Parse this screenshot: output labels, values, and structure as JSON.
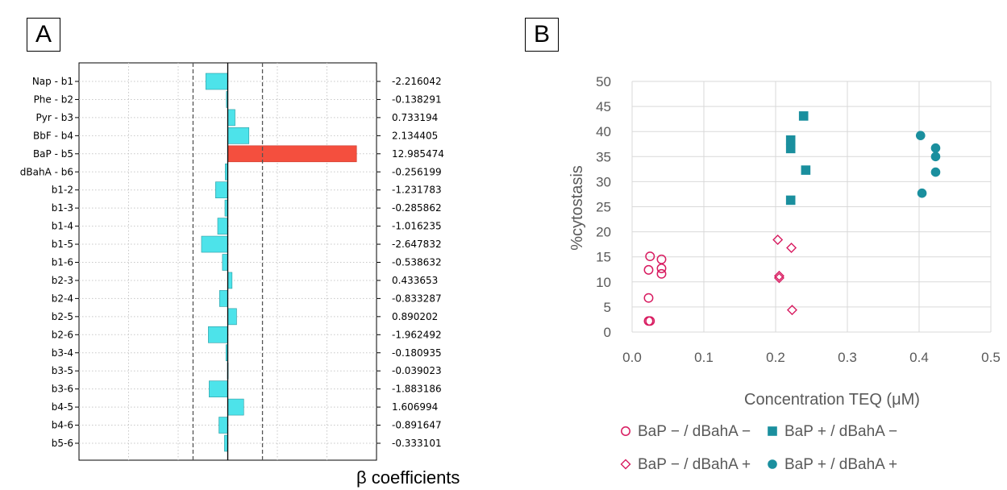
{
  "panel_a_label": "A",
  "panel_b_label": "B",
  "chart_data": [
    {
      "type": "bar",
      "orientation": "horizontal",
      "categories": [
        "Nap - b1",
        "Phe - b2",
        "Pyr - b3",
        "BbF - b4",
        "BaP - b5",
        "dBahA - b6",
        "b1-2",
        "b1-3",
        "b1-4",
        "b1-5",
        "b1-6",
        "b2-3",
        "b2-4",
        "b2-5",
        "b2-6",
        "b3-4",
        "b3-5",
        "b3-6",
        "b4-5",
        "b4-6",
        "b5-6"
      ],
      "values": [
        -2.216042,
        -0.138291,
        0.733194,
        2.134405,
        12.985474,
        -0.256199,
        -1.231783,
        -0.285862,
        -1.016235,
        -2.647832,
        -0.538632,
        0.433653,
        -0.833287,
        0.890202,
        -1.962492,
        -0.180935,
        -0.039023,
        -1.883186,
        1.606994,
        -0.891647,
        -0.333101
      ],
      "value_labels": [
        "-2.216042",
        "-0.138291",
        "0.733194",
        "2.134405",
        "12.985474",
        "-0.256199",
        "-1.231783",
        "-0.285862",
        "-1.016235",
        "-2.647832",
        "-0.538632",
        "0.433653",
        "-0.833287",
        "0.890202",
        "-1.962492",
        "-0.180935",
        "-0.039023",
        "-1.883186",
        "1.606994",
        "-0.891647",
        "-0.333101"
      ],
      "xlabel": "β coefficients",
      "xlim": [
        -15,
        15
      ],
      "reference_lines": [
        -3.5,
        3.5
      ],
      "highlight_category": "BaP - b5",
      "colors": {
        "bar": "#4de3ea",
        "highlight": "#f44f3e",
        "bar_edge": "#2a9aa0",
        "dashed": "#555555"
      }
    },
    {
      "type": "scatter",
      "ylabel": "%cytostasis",
      "xlabel": "Concentration TEQ (μM)",
      "xlim": [
        0,
        0.5
      ],
      "ylim": [
        0,
        50
      ],
      "x_ticks": [
        "0.0",
        "0.1",
        "0.2",
        "0.3",
        "0.4",
        "0.5"
      ],
      "y_ticks": [
        "0",
        "5",
        "10",
        "15",
        "20",
        "25",
        "30",
        "35",
        "40",
        "45",
        "50"
      ],
      "grid": true,
      "legend_position": "bottom",
      "series": [
        {
          "name": "BaP − / dBahA −",
          "marker": "circle-open",
          "color": "#d81b60",
          "points": [
            [
              0.023,
              2.2
            ],
            [
              0.025,
              2.2
            ],
            [
              0.023,
              6.8
            ],
            [
              0.023,
              12.4
            ],
            [
              0.025,
              15.1
            ],
            [
              0.041,
              11.6
            ],
            [
              0.041,
              12.7
            ],
            [
              0.041,
              14.5
            ]
          ]
        },
        {
          "name": "BaP + / dBahA −",
          "marker": "square-filled",
          "color": "#1a8f9e",
          "points": [
            [
              0.221,
              26.3
            ],
            [
              0.221,
              36.6
            ],
            [
              0.221,
              38.3
            ],
            [
              0.239,
              43.1
            ],
            [
              0.242,
              32.3
            ]
          ]
        },
        {
          "name": "BaP − / dBahA +",
          "marker": "diamond-open",
          "color": "#d81b60",
          "points": [
            [
              0.203,
              18.4
            ],
            [
              0.205,
              11.2
            ],
            [
              0.205,
              10.8
            ],
            [
              0.222,
              16.8
            ],
            [
              0.223,
              4.4
            ]
          ]
        },
        {
          "name": "BaP + / dBahA +",
          "marker": "circle-filled",
          "color": "#1a8f9e",
          "points": [
            [
              0.402,
              39.2
            ],
            [
              0.404,
              27.7
            ],
            [
              0.423,
              36.7
            ],
            [
              0.423,
              35.0
            ],
            [
              0.423,
              31.9
            ]
          ]
        }
      ]
    }
  ]
}
